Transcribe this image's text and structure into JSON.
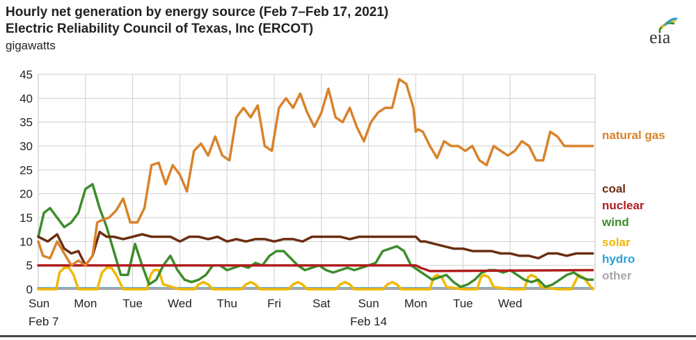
{
  "chart_data": {
    "type": "line",
    "title": "Hourly net generation by energy source (Feb 7–Feb 17, 2021)",
    "subtitle": "Electric Reliability Council of Texas, Inc (ERCOT)",
    "ylabel": "gigawatts",
    "ylim": [
      0,
      45
    ],
    "yticks": [
      0,
      5,
      10,
      15,
      20,
      25,
      30,
      35,
      40,
      45
    ],
    "xlim": [
      0,
      11.8
    ],
    "xticks": [
      {
        "pos": 0,
        "label": "Sun",
        "sublabel": "Feb 7"
      },
      {
        "pos": 1,
        "label": "Mon",
        "sublabel": ""
      },
      {
        "pos": 2,
        "label": "Tue",
        "sublabel": ""
      },
      {
        "pos": 3,
        "label": "Wed",
        "sublabel": ""
      },
      {
        "pos": 4,
        "label": "Thu",
        "sublabel": ""
      },
      {
        "pos": 5,
        "label": "Fri",
        "sublabel": ""
      },
      {
        "pos": 6,
        "label": "Sat",
        "sublabel": ""
      },
      {
        "pos": 7,
        "label": "Sun",
        "sublabel": "Feb 14"
      },
      {
        "pos": 8,
        "label": "Mon",
        "sublabel": ""
      },
      {
        "pos": 9,
        "label": "Tue",
        "sublabel": ""
      },
      {
        "pos": 10,
        "label": "Wed",
        "sublabel": ""
      }
    ],
    "grid": true,
    "legend": "right (inline labels)",
    "series": [
      {
        "name": "natural gas",
        "color": "#d9822b",
        "x": [
          0,
          0.1,
          0.25,
          0.4,
          0.55,
          0.7,
          0.85,
          1.0,
          1.15,
          1.25,
          1.35,
          1.5,
          1.65,
          1.8,
          1.95,
          2.1,
          2.25,
          2.4,
          2.55,
          2.7,
          2.85,
          3.0,
          3.15,
          3.3,
          3.45,
          3.6,
          3.75,
          3.9,
          4.05,
          4.2,
          4.35,
          4.5,
          4.65,
          4.8,
          4.95,
          5.1,
          5.25,
          5.4,
          5.55,
          5.7,
          5.85,
          6.0,
          6.15,
          6.3,
          6.45,
          6.6,
          6.75,
          6.9,
          7.05,
          7.2,
          7.35,
          7.5,
          7.65,
          7.8,
          7.95,
          8.0,
          8.05,
          8.15,
          8.3,
          8.45,
          8.6,
          8.75,
          8.9,
          9.05,
          9.2,
          9.35,
          9.5,
          9.65,
          9.8,
          9.95,
          10.1,
          10.25,
          10.4,
          10.55,
          10.7,
          10.85,
          11.0,
          11.15,
          11.3,
          11.45,
          11.6,
          11.75
        ],
        "y": [
          10,
          7,
          6.5,
          10,
          7.5,
          5,
          6,
          5,
          7,
          14,
          14.5,
          15,
          16.5,
          19,
          14,
          14,
          17,
          26,
          26.5,
          22,
          26,
          24,
          20.5,
          29,
          30.5,
          28,
          32,
          28,
          27,
          36,
          38,
          36,
          38.5,
          30,
          29,
          38,
          40,
          38,
          41,
          37,
          34,
          37,
          42,
          36,
          35,
          38,
          34,
          31,
          35,
          37,
          38,
          38,
          44,
          43,
          38,
          33,
          33.5,
          33,
          30,
          27.5,
          31,
          30,
          30,
          29,
          30,
          27,
          26,
          30,
          29,
          28,
          29,
          31,
          30,
          27,
          27,
          33,
          32,
          30,
          30,
          30,
          30,
          30
        ]
      },
      {
        "name": "coal",
        "color": "#6b2e12",
        "x": [
          0,
          0.2,
          0.4,
          0.55,
          0.7,
          0.85,
          1.0,
          1.15,
          1.3,
          1.45,
          1.6,
          1.8,
          2.0,
          2.2,
          2.4,
          2.6,
          2.8,
          3.0,
          3.2,
          3.4,
          3.6,
          3.8,
          4.0,
          4.2,
          4.4,
          4.6,
          4.8,
          5.0,
          5.2,
          5.4,
          5.6,
          5.8,
          6.0,
          6.2,
          6.4,
          6.6,
          6.8,
          7.0,
          7.2,
          7.4,
          7.6,
          7.8,
          8.0,
          8.05,
          8.1,
          8.2,
          8.4,
          8.6,
          8.8,
          9.0,
          9.2,
          9.4,
          9.6,
          9.8,
          10.0,
          10.2,
          10.4,
          10.6,
          10.8,
          11.0,
          11.2,
          11.4,
          11.6,
          11.75
        ],
        "y": [
          11,
          10,
          11.5,
          8.5,
          7.5,
          8,
          5,
          7,
          12,
          11,
          11,
          10.5,
          11,
          11.5,
          11,
          11,
          11,
          10,
          11,
          11,
          10.5,
          11,
          10,
          10.5,
          10,
          10.5,
          10.5,
          10,
          10.5,
          10.5,
          10,
          11,
          11,
          11,
          11,
          10.5,
          11,
          11,
          11,
          11,
          11,
          11,
          11,
          10.5,
          10,
          10,
          9.5,
          9,
          8.5,
          8.5,
          8,
          8,
          8,
          7.5,
          7.5,
          7,
          7,
          6.5,
          7.5,
          7.5,
          7,
          7.5,
          7.5,
          7.5
        ]
      },
      {
        "name": "nuclear",
        "color": "#b01e1e",
        "x": [
          0,
          8.0,
          8.1,
          8.3,
          11.75
        ],
        "y": [
          5,
          5,
          4.5,
          3.8,
          4
        ]
      },
      {
        "name": "wind",
        "color": "#3c8c2a",
        "x": [
          0,
          0.12,
          0.25,
          0.4,
          0.55,
          0.7,
          0.85,
          1.0,
          1.15,
          1.3,
          1.45,
          1.6,
          1.75,
          1.9,
          2.05,
          2.2,
          2.35,
          2.5,
          2.65,
          2.8,
          2.95,
          3.1,
          3.25,
          3.4,
          3.55,
          3.7,
          3.85,
          4.0,
          4.15,
          4.3,
          4.45,
          4.6,
          4.75,
          4.9,
          5.05,
          5.2,
          5.35,
          5.5,
          5.65,
          5.8,
          5.95,
          6.1,
          6.25,
          6.4,
          6.55,
          6.7,
          6.85,
          7.0,
          7.15,
          7.3,
          7.45,
          7.6,
          7.75,
          7.9,
          8.05,
          8.2,
          8.35,
          8.5,
          8.65,
          8.8,
          8.95,
          9.1,
          9.25,
          9.4,
          9.55,
          9.7,
          9.85,
          10.0,
          10.15,
          10.3,
          10.45,
          10.6,
          10.75,
          10.9,
          11.05,
          11.2,
          11.35,
          11.5,
          11.65,
          11.75
        ],
        "y": [
          11,
          16,
          17,
          15,
          13,
          14,
          16,
          21,
          22,
          17,
          13,
          8,
          3,
          3,
          9.5,
          5,
          1,
          2,
          5,
          7,
          4,
          2,
          1.5,
          2,
          3,
          5,
          5,
          4,
          4.5,
          5,
          4.5,
          5.5,
          5,
          7,
          8,
          8,
          6.5,
          5,
          4,
          4.5,
          5,
          4,
          3.5,
          4,
          4.5,
          4,
          4.5,
          5,
          5.5,
          8,
          8.5,
          9,
          8,
          5,
          4,
          3,
          2,
          2.5,
          3,
          1.5,
          0.5,
          1,
          2,
          3.5,
          4,
          4,
          3.5,
          4,
          3,
          2,
          1.5,
          2,
          0.5,
          1,
          2,
          3,
          3.5,
          2.5,
          2,
          2
        ]
      },
      {
        "name": "solar",
        "color": "#f0b800",
        "x": [
          0,
          0.1,
          0.2,
          0.3,
          0.38,
          0.45,
          0.55,
          0.65,
          0.75,
          0.85,
          1.0,
          1.1,
          1.25,
          1.35,
          1.45,
          1.55,
          1.65,
          1.8,
          2.0,
          2.2,
          2.3,
          2.38,
          2.45,
          2.55,
          2.65,
          3.0,
          3.3,
          3.4,
          3.5,
          3.6,
          3.7,
          4.0,
          4.3,
          4.4,
          4.5,
          4.6,
          4.7,
          5.0,
          5.3,
          5.4,
          5.5,
          5.6,
          5.7,
          6.0,
          6.3,
          6.4,
          6.5,
          6.6,
          6.7,
          7.0,
          7.3,
          7.4,
          7.5,
          7.6,
          7.7,
          8.0,
          8.3,
          8.38,
          8.45,
          8.55,
          8.65,
          9.0,
          9.3,
          9.38,
          9.45,
          9.55,
          9.65,
          10.0,
          10.3,
          10.38,
          10.45,
          10.55,
          10.65,
          11.0,
          11.3,
          11.45,
          11.55,
          11.75
        ],
        "y": [
          0,
          0,
          0,
          0,
          0,
          3.5,
          4.5,
          4.5,
          3,
          0,
          0,
          0,
          0,
          3.5,
          4.5,
          4.5,
          3,
          0,
          0,
          0,
          0,
          3,
          4,
          4,
          1,
          0,
          0,
          1,
          1.5,
          1,
          0,
          0,
          0,
          1,
          1.5,
          1,
          0,
          0,
          0,
          1,
          1.5,
          1,
          0,
          0,
          0,
          1,
          1.5,
          1,
          0,
          0,
          0,
          1,
          1.5,
          1,
          0,
          0,
          0,
          2.5,
          3,
          2.5,
          0.5,
          0,
          0,
          2.5,
          3,
          2.5,
          0.5,
          0,
          0,
          2.5,
          3,
          2.5,
          0.5,
          0,
          0,
          3,
          2.5,
          0
        ]
      },
      {
        "name": "hydro",
        "color": "#2a9fd8",
        "x": [
          0,
          11.75
        ],
        "y": [
          0.2,
          0.2
        ]
      },
      {
        "name": "other",
        "color": "#a8a8a8",
        "x": [
          0,
          11.75
        ],
        "y": [
          0.1,
          0.1
        ]
      }
    ]
  }
}
